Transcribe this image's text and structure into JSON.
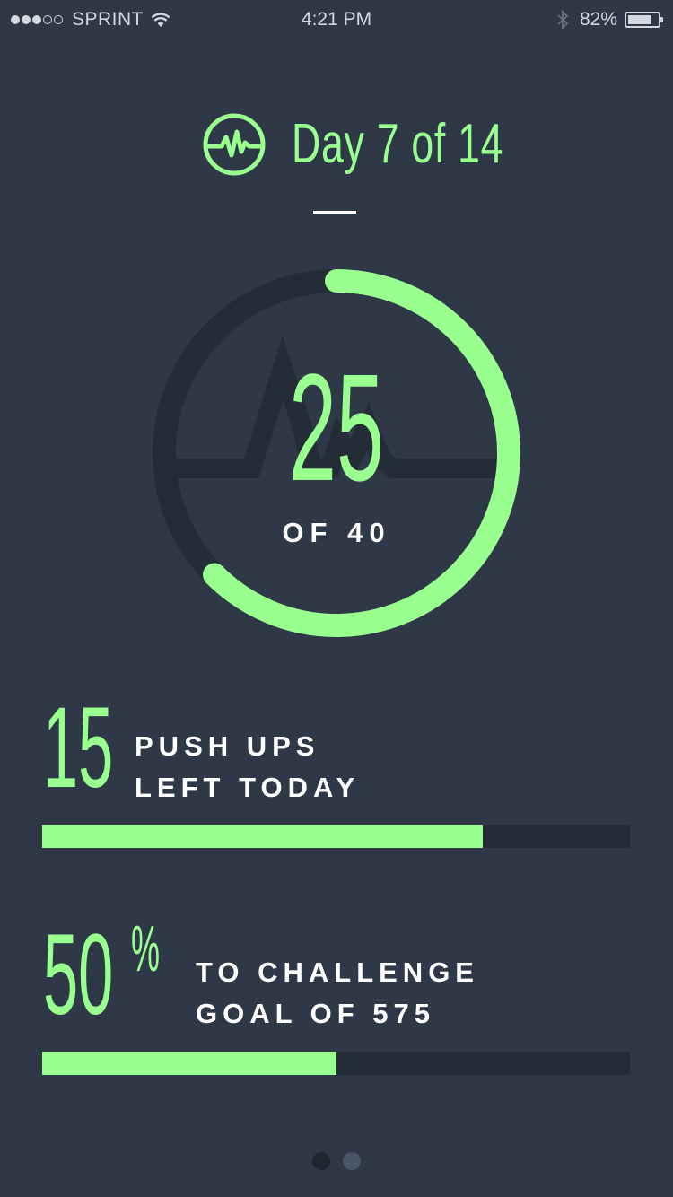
{
  "status_bar": {
    "carrier": "SPRINT",
    "time": "4:21 PM",
    "battery_percent": "82%",
    "battery_level": 0.82,
    "signal_bars": 3,
    "signal_total": 5,
    "icons": [
      "wifi-icon",
      "bluetooth-icon",
      "battery-icon"
    ]
  },
  "header": {
    "title": "Day 7 of 14",
    "icon": "pulse-icon"
  },
  "progress_ring": {
    "value": "25",
    "subtitle": "OF 40",
    "current": 25,
    "total": 40
  },
  "stats": {
    "pushups_left": {
      "number": "15",
      "line1": "PUSH UPS",
      "line2": "LEFT TODAY",
      "progress": 0.75
    },
    "challenge": {
      "number": "50",
      "percent_sign": "%",
      "line1": "TO CHALLENGE",
      "line2": "GOAL OF 575",
      "progress": 0.5
    }
  },
  "pager": {
    "count": 2,
    "active_index": 0
  },
  "colors": {
    "background": "#2e3847",
    "accent": "#99ff8f",
    "track": "#232c37",
    "text": "#ffffff"
  }
}
